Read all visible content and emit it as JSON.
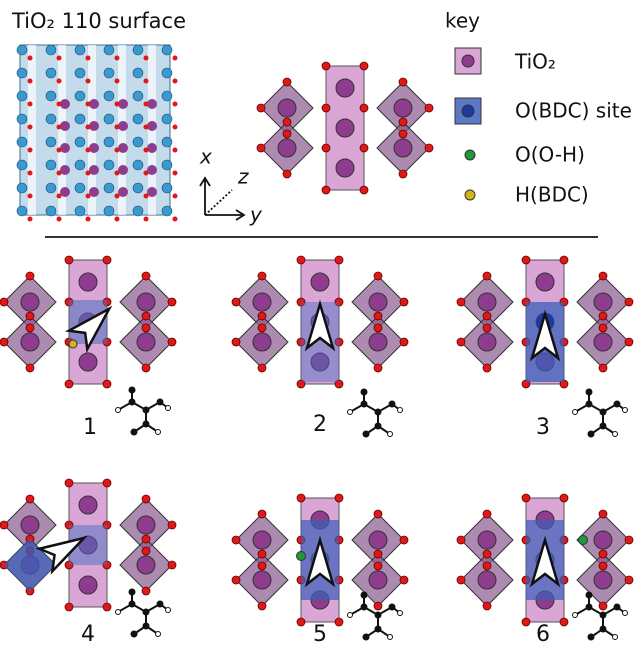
{
  "title": "TiO₂ 110 surface",
  "axes": {
    "x": "x",
    "z": "z",
    "y": "y"
  },
  "key": {
    "title": "key",
    "items": [
      "TiO₂",
      "O(BDC) site",
      "O(O-H)",
      "H(BDC)"
    ]
  },
  "panels": [
    "1",
    "2",
    "3",
    "4",
    "5",
    "6"
  ]
}
